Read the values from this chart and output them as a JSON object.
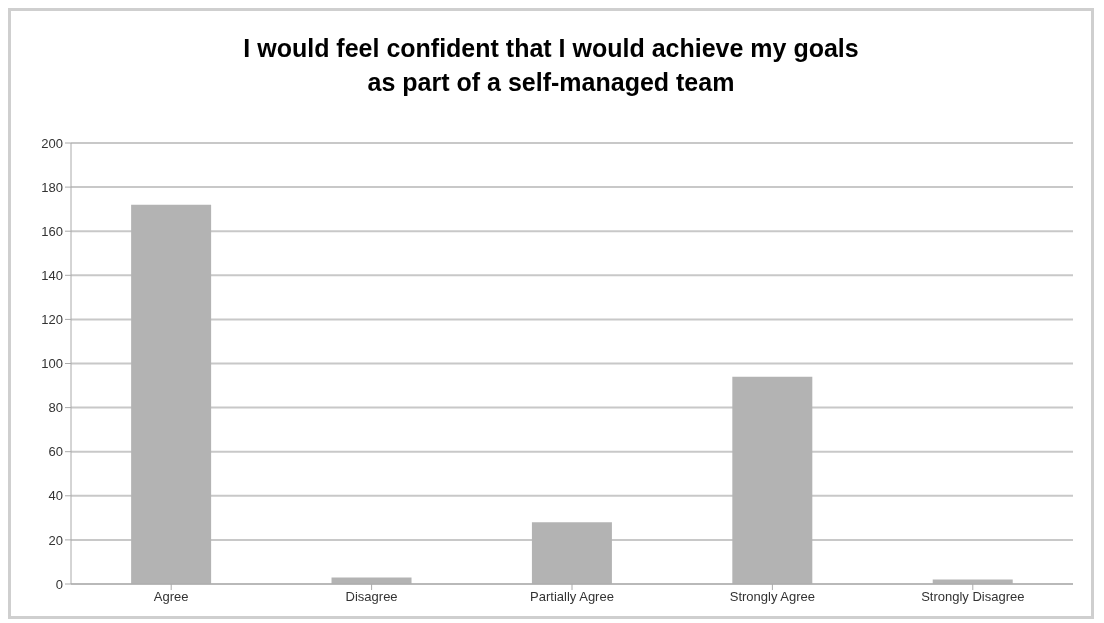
{
  "chart_data": {
    "type": "bar",
    "title": "I would feel confident that I would achieve my goals as part of a self-managed team",
    "categories": [
      "Agree",
      "Disagree",
      "Partially Agree",
      "Strongly Agree",
      "Strongly Disagree"
    ],
    "values": [
      172,
      3,
      28,
      94,
      2
    ],
    "color": "#b3b3b3",
    "ylim": [
      0,
      200
    ],
    "yticks": [
      0,
      20,
      40,
      60,
      80,
      100,
      120,
      140,
      160,
      180,
      200
    ],
    "grid": "y"
  }
}
